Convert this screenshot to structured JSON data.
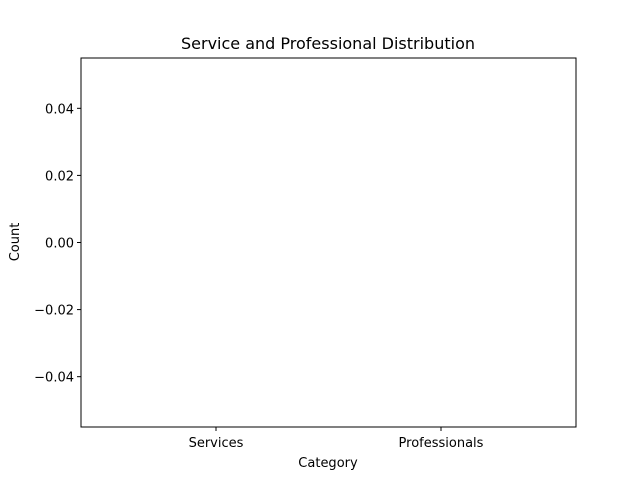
{
  "chart_data": {
    "type": "bar",
    "title": "Service and Professional Distribution",
    "xlabel": "Category",
    "ylabel": "Count",
    "categories": [
      "Services",
      "Professionals"
    ],
    "values": [
      0,
      0
    ],
    "ylim": [
      -0.055,
      0.055
    ],
    "yticks": [
      0.04,
      0.02,
      0.0,
      -0.02,
      -0.04
    ],
    "ytick_labels": [
      "0.04",
      "0.02",
      "0.00",
      "−0.02",
      "−0.04"
    ],
    "grid": false,
    "legend": "none"
  }
}
